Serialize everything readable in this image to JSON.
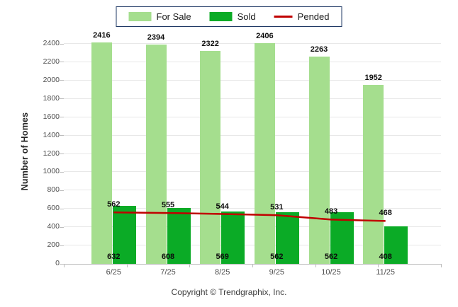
{
  "chart_data": {
    "type": "bar",
    "categories": [
      "6/25",
      "7/25",
      "8/25",
      "9/25",
      "10/25",
      "11/25"
    ],
    "series": [
      {
        "name": "For Sale",
        "color": "#a5de8e",
        "values": [
          2416,
          2394,
          2322,
          2406,
          2263,
          1952
        ]
      },
      {
        "name": "Sold",
        "color": "#0bab26",
        "values": [
          632,
          608,
          569,
          562,
          562,
          408
        ]
      }
    ],
    "line_series": {
      "name": "Pended",
      "color": "#c00000",
      "values": [
        562,
        555,
        544,
        531,
        483,
        468
      ]
    },
    "title": "",
    "xlabel": "",
    "ylabel": "Number of Homes",
    "ylim": [
      0,
      2400
    ],
    "yticks": [
      0,
      200,
      400,
      600,
      800,
      1000,
      1200,
      1400,
      1600,
      1800,
      2000,
      2200,
      2400
    ],
    "grid": "horizontal",
    "legend_position": "top",
    "value_labels": true
  },
  "footer": {
    "copyright": "Copyright © Trendgraphix, Inc."
  }
}
